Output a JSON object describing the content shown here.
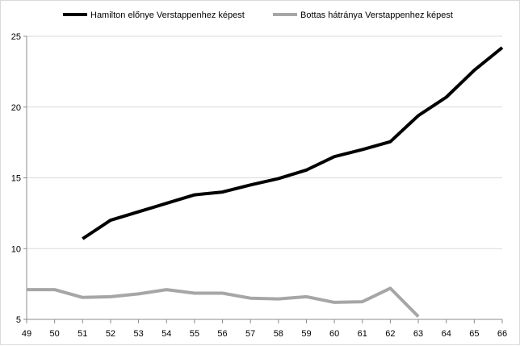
{
  "chart_data": {
    "type": "line",
    "title": "",
    "xlabel": "",
    "ylabel": "",
    "x": [
      49,
      50,
      51,
      52,
      53,
      54,
      55,
      56,
      57,
      58,
      59,
      60,
      61,
      62,
      63,
      64,
      65,
      66
    ],
    "ylim": [
      5,
      25
    ],
    "yticks": [
      5,
      10,
      15,
      20,
      25
    ],
    "grid": "horizontal",
    "legend_position": "top",
    "series": [
      {
        "name": "Hamilton előnye Verstappenhez képest",
        "color": "#000000",
        "values": [
          null,
          null,
          10.7,
          12.0,
          12.6,
          13.2,
          13.8,
          14.0,
          14.5,
          14.95,
          15.55,
          16.5,
          17.0,
          17.55,
          19.4,
          20.7,
          22.6,
          24.2
        ]
      },
      {
        "name": "Bottas hátránya Verstappenhez képest",
        "color": "#a6a6a6",
        "values": [
          7.1,
          7.1,
          6.55,
          6.6,
          6.8,
          7.1,
          6.85,
          6.85,
          6.5,
          6.45,
          6.6,
          6.2,
          6.25,
          7.2,
          5.2,
          null,
          null,
          null
        ]
      }
    ]
  }
}
